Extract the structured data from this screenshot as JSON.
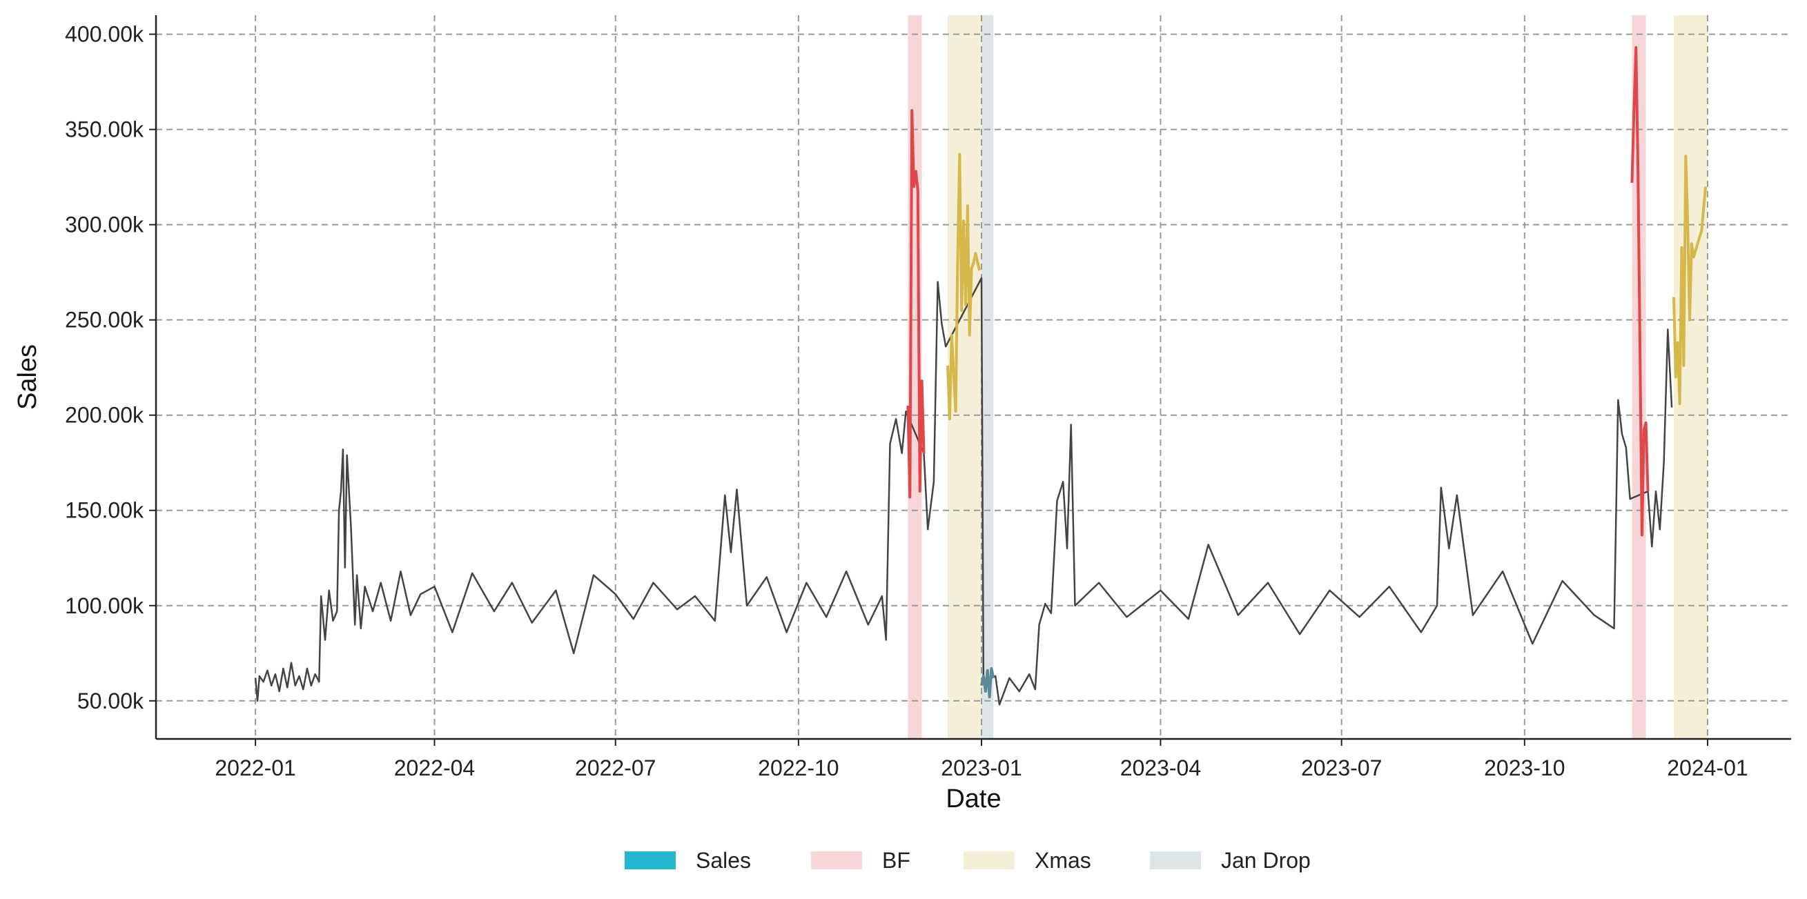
{
  "chart_data": {
    "type": "line",
    "title": "",
    "xlabel": "Date",
    "ylabel": "Sales",
    "x_range": [
      "2021-11-12",
      "2024-02-12"
    ],
    "ylim": [
      30000,
      410000
    ],
    "x_ticks": [
      {
        "date": "2022-01-01",
        "label": "2022-01"
      },
      {
        "date": "2022-04-01",
        "label": "2022-04"
      },
      {
        "date": "2022-07-01",
        "label": "2022-07"
      },
      {
        "date": "2022-10-01",
        "label": "2022-10"
      },
      {
        "date": "2023-01-01",
        "label": "2023-01"
      },
      {
        "date": "2023-04-01",
        "label": "2023-04"
      },
      {
        "date": "2023-07-01",
        "label": "2023-07"
      },
      {
        "date": "2023-10-01",
        "label": "2023-10"
      },
      {
        "date": "2024-01-01",
        "label": "2024-01"
      }
    ],
    "y_ticks": [
      {
        "value": 50000,
        "label": "50.00k"
      },
      {
        "value": 100000,
        "label": "100.00k"
      },
      {
        "value": 150000,
        "label": "150.00k"
      },
      {
        "value": 200000,
        "label": "200.00k"
      },
      {
        "value": 250000,
        "label": "250.00k"
      },
      {
        "value": 300000,
        "label": "300.00k"
      },
      {
        "value": 350000,
        "label": "350.00k"
      },
      {
        "value": 400000,
        "label": "400.00k"
      }
    ],
    "grid": true,
    "legend_position": "bottom-center",
    "legend": [
      {
        "label": "Sales",
        "color": "#22b8cf",
        "kind": "series"
      },
      {
        "label": "BF",
        "color": "#f6d6d6",
        "kind": "band"
      },
      {
        "label": "Xmas",
        "color": "#f4efd6",
        "kind": "band"
      },
      {
        "label": "Jan Drop",
        "color": "#dde6e6",
        "kind": "band"
      }
    ],
    "highlight_bands": [
      {
        "label": "BF",
        "start": "2022-11-25",
        "end": "2022-12-02",
        "color": "#f6d6d6"
      },
      {
        "label": "Xmas",
        "start": "2022-12-15",
        "end": "2023-01-01",
        "color": "#f4efd6"
      },
      {
        "label": "Jan Drop",
        "start": "2023-01-01",
        "end": "2023-01-07",
        "color": "#dde6e6"
      },
      {
        "label": "BF",
        "start": "2023-11-24",
        "end": "2023-12-01",
        "color": "#f6d6d6"
      },
      {
        "label": "Xmas",
        "start": "2023-12-15",
        "end": "2024-01-01",
        "color": "#f4efd6"
      }
    ],
    "series": [
      {
        "name": "Sales",
        "color": "#444444",
        "points": [
          [
            "2022-01-01",
            62000
          ],
          [
            "2022-01-02",
            50000
          ],
          [
            "2022-01-03",
            63000
          ],
          [
            "2022-01-05",
            60000
          ],
          [
            "2022-01-07",
            66000
          ],
          [
            "2022-01-09",
            58000
          ],
          [
            "2022-01-11",
            64000
          ],
          [
            "2022-01-13",
            55000
          ],
          [
            "2022-01-15",
            67000
          ],
          [
            "2022-01-17",
            57000
          ],
          [
            "2022-01-19",
            70000
          ],
          [
            "2022-01-21",
            58000
          ],
          [
            "2022-01-23",
            63000
          ],
          [
            "2022-01-25",
            56000
          ],
          [
            "2022-01-27",
            67000
          ],
          [
            "2022-01-29",
            58000
          ],
          [
            "2022-01-31",
            64000
          ],
          [
            "2022-02-02",
            60000
          ],
          [
            "2022-02-03",
            105000
          ],
          [
            "2022-02-05",
            82000
          ],
          [
            "2022-02-07",
            108000
          ],
          [
            "2022-02-09",
            92000
          ],
          [
            "2022-02-11",
            97000
          ],
          [
            "2022-02-12",
            150000
          ],
          [
            "2022-02-13",
            160000
          ],
          [
            "2022-02-14",
            182000
          ],
          [
            "2022-02-15",
            120000
          ],
          [
            "2022-02-16",
            179000
          ],
          [
            "2022-02-18",
            142000
          ],
          [
            "2022-02-20",
            90000
          ],
          [
            "2022-02-21",
            116000
          ],
          [
            "2022-02-23",
            88000
          ],
          [
            "2022-02-25",
            110000
          ],
          [
            "2022-03-01",
            97000
          ],
          [
            "2022-03-05",
            112000
          ],
          [
            "2022-03-10",
            92000
          ],
          [
            "2022-03-15",
            118000
          ],
          [
            "2022-03-20",
            95000
          ],
          [
            "2022-03-25",
            106000
          ],
          [
            "2022-04-01",
            110000
          ],
          [
            "2022-04-10",
            86000
          ],
          [
            "2022-04-20",
            117000
          ],
          [
            "2022-05-01",
            97000
          ],
          [
            "2022-05-10",
            112000
          ],
          [
            "2022-05-20",
            91000
          ],
          [
            "2022-06-01",
            108000
          ],
          [
            "2022-06-10",
            75000
          ],
          [
            "2022-06-20",
            116000
          ],
          [
            "2022-07-01",
            106000
          ],
          [
            "2022-07-10",
            93000
          ],
          [
            "2022-07-20",
            112000
          ],
          [
            "2022-08-01",
            98000
          ],
          [
            "2022-08-10",
            105000
          ],
          [
            "2022-08-20",
            92000
          ],
          [
            "2022-08-25",
            158000
          ],
          [
            "2022-08-28",
            128000
          ],
          [
            "2022-08-31",
            161000
          ],
          [
            "2022-09-05",
            100000
          ],
          [
            "2022-09-15",
            115000
          ],
          [
            "2022-09-25",
            86000
          ],
          [
            "2022-10-05",
            112000
          ],
          [
            "2022-10-15",
            94000
          ],
          [
            "2022-10-25",
            118000
          ],
          [
            "2022-11-05",
            90000
          ],
          [
            "2022-11-12",
            105000
          ],
          [
            "2022-11-14",
            82000
          ],
          [
            "2022-11-16",
            185000
          ],
          [
            "2022-11-19",
            198000
          ],
          [
            "2022-11-22",
            180000
          ],
          [
            "2022-11-24",
            202000
          ],
          [
            "2022-12-03",
            180000
          ],
          [
            "2022-12-05",
            140000
          ],
          [
            "2022-12-08",
            165000
          ],
          [
            "2022-12-10",
            270000
          ],
          [
            "2022-12-12",
            248000
          ],
          [
            "2022-12-14",
            236000
          ],
          [
            "2023-01-01",
            272000
          ],
          [
            "2023-01-02",
            60000
          ],
          [
            "2023-01-08",
            63000
          ],
          [
            "2023-01-10",
            48000
          ],
          [
            "2023-01-15",
            62000
          ],
          [
            "2023-01-20",
            55000
          ],
          [
            "2023-01-25",
            64000
          ],
          [
            "2023-01-28",
            56000
          ],
          [
            "2023-01-30",
            90000
          ],
          [
            "2023-02-02",
            101000
          ],
          [
            "2023-02-05",
            96000
          ],
          [
            "2023-02-08",
            155000
          ],
          [
            "2023-02-11",
            165000
          ],
          [
            "2023-02-13",
            130000
          ],
          [
            "2023-02-15",
            195000
          ],
          [
            "2023-02-17",
            100000
          ],
          [
            "2023-03-01",
            112000
          ],
          [
            "2023-03-15",
            94000
          ],
          [
            "2023-04-01",
            108000
          ],
          [
            "2023-04-15",
            93000
          ],
          [
            "2023-04-25",
            132000
          ],
          [
            "2023-05-10",
            95000
          ],
          [
            "2023-05-25",
            112000
          ],
          [
            "2023-06-10",
            85000
          ],
          [
            "2023-06-25",
            108000
          ],
          [
            "2023-07-10",
            94000
          ],
          [
            "2023-07-25",
            110000
          ],
          [
            "2023-08-10",
            86000
          ],
          [
            "2023-08-18",
            100000
          ],
          [
            "2023-08-20",
            162000
          ],
          [
            "2023-08-24",
            130000
          ],
          [
            "2023-08-28",
            158000
          ],
          [
            "2023-09-05",
            95000
          ],
          [
            "2023-09-20",
            118000
          ],
          [
            "2023-10-05",
            80000
          ],
          [
            "2023-10-20",
            113000
          ],
          [
            "2023-11-05",
            95000
          ],
          [
            "2023-11-15",
            88000
          ],
          [
            "2023-11-17",
            208000
          ],
          [
            "2023-11-19",
            190000
          ],
          [
            "2023-11-21",
            183000
          ],
          [
            "2023-11-23",
            156000
          ],
          [
            "2023-12-02",
            160000
          ],
          [
            "2023-12-04",
            131000
          ],
          [
            "2023-12-06",
            160000
          ],
          [
            "2023-12-08",
            140000
          ],
          [
            "2023-12-10",
            175000
          ],
          [
            "2023-12-12",
            245000
          ],
          [
            "2023-12-14",
            204000
          ]
        ]
      },
      {
        "name": "BF",
        "color": "#e0474c",
        "points": [
          [
            "2022-11-25",
            205000
          ],
          [
            "2022-11-26",
            157000
          ],
          [
            "2022-11-27",
            360000
          ],
          [
            "2022-11-28",
            320000
          ],
          [
            "2022-11-29",
            328000
          ],
          [
            "2022-11-30",
            318000
          ],
          [
            "2022-12-01",
            160000
          ],
          [
            "2022-12-02",
            218000
          ],
          [
            "2022-12-03",
            180000
          ]
        ]
      },
      {
        "name": "Xmas",
        "color": "#d4b84a",
        "points": [
          [
            "2022-12-15",
            226000
          ],
          [
            "2022-12-16",
            198000
          ],
          [
            "2022-12-17",
            242000
          ],
          [
            "2022-12-19",
            202000
          ],
          [
            "2022-12-20",
            280000
          ],
          [
            "2022-12-21",
            337000
          ],
          [
            "2022-12-22",
            255000
          ],
          [
            "2022-12-23",
            302000
          ],
          [
            "2022-12-24",
            258000
          ],
          [
            "2022-12-25",
            310000
          ],
          [
            "2022-12-26",
            242000
          ],
          [
            "2022-12-27",
            277000
          ],
          [
            "2022-12-28",
            280000
          ],
          [
            "2022-12-29",
            285000
          ],
          [
            "2022-12-31",
            276000
          ]
        ]
      },
      {
        "name": "Jan Drop",
        "color": "#5b8a98",
        "points": [
          [
            "2023-01-01",
            58000
          ],
          [
            "2023-01-02",
            63000
          ],
          [
            "2023-01-03",
            55000
          ],
          [
            "2023-01-04",
            66000
          ],
          [
            "2023-01-05",
            52000
          ],
          [
            "2023-01-06",
            67000
          ],
          [
            "2023-01-07",
            62000
          ]
        ]
      },
      {
        "name": "BF",
        "color": "#e0474c",
        "points": [
          [
            "2023-11-24",
            322000
          ],
          [
            "2023-11-25",
            360000
          ],
          [
            "2023-11-26",
            393000
          ],
          [
            "2023-11-27",
            330000
          ],
          [
            "2023-11-28",
            236000
          ],
          [
            "2023-11-29",
            137000
          ],
          [
            "2023-11-30",
            192000
          ],
          [
            "2023-12-01",
            196000
          ],
          [
            "2023-12-02",
            160000
          ]
        ]
      },
      {
        "name": "Xmas",
        "color": "#d4b84a",
        "points": [
          [
            "2023-12-15",
            262000
          ],
          [
            "2023-12-16",
            220000
          ],
          [
            "2023-12-17",
            238000
          ],
          [
            "2023-12-18",
            206000
          ],
          [
            "2023-12-19",
            288000
          ],
          [
            "2023-12-20",
            226000
          ],
          [
            "2023-12-21",
            336000
          ],
          [
            "2023-12-22",
            302000
          ],
          [
            "2023-12-23",
            250000
          ],
          [
            "2023-12-24",
            290000
          ],
          [
            "2023-12-25",
            283000
          ],
          [
            "2023-12-27",
            290000
          ],
          [
            "2023-12-29",
            297000
          ],
          [
            "2023-12-31",
            320000
          ]
        ]
      }
    ]
  }
}
